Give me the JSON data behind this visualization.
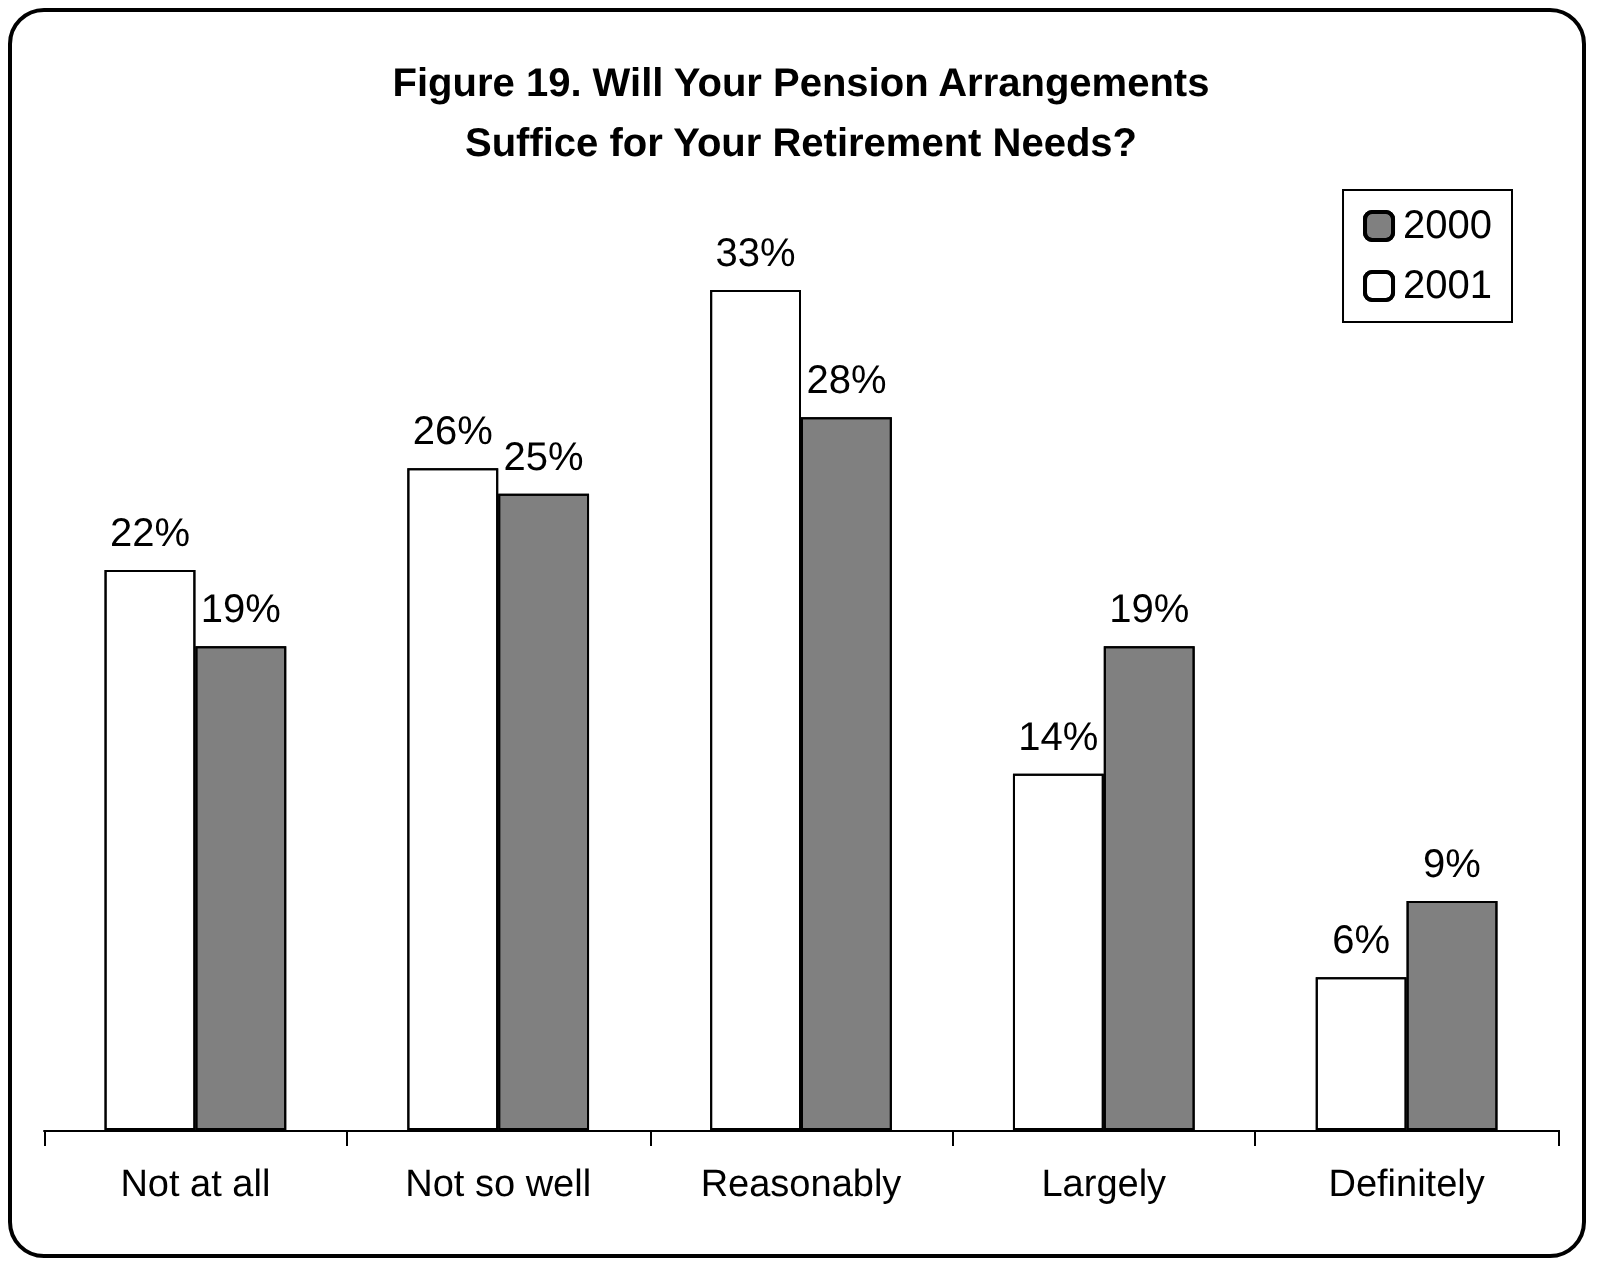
{
  "chart_data": {
    "type": "bar",
    "title": "Figure 19. Will Your Pension Arrangements\nSuffice for Your Retirement Needs?",
    "categories": [
      "Not at all",
      "Not so well",
      "Reasonably",
      "Largely",
      "Definitely"
    ],
    "series": [
      {
        "name": "2001",
        "color": "#ffffff",
        "values": [
          22,
          26,
          33,
          14,
          6
        ],
        "value_labels": [
          "22%",
          "26%",
          "33%",
          "14%",
          "6%"
        ]
      },
      {
        "name": "2000",
        "color": "#808080",
        "values": [
          19,
          25,
          28,
          19,
          9
        ],
        "value_labels": [
          "19%",
          "25%",
          "28%",
          "19%",
          "9%"
        ]
      }
    ],
    "legend": "top right"
  }
}
